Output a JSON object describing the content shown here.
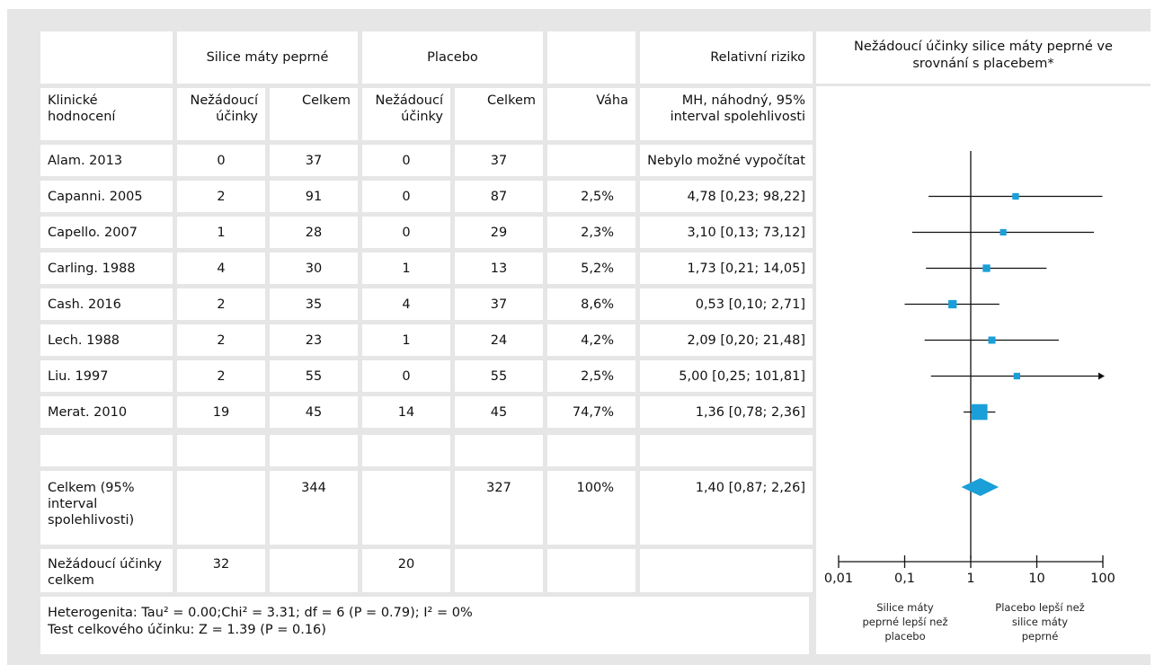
{
  "header": {
    "group_sm": "Silice máty peprné",
    "group_pl": "Placebo",
    "rr_title": "Relativní riziko",
    "plot_title": "Nežádoucí účinky silice máty peprné ve srovnání s placebem*"
  },
  "subheader": {
    "trial": "Klinické hodnocení",
    "sm_events": "Nežádoucí účinky",
    "sm_total": "Celkem",
    "pl_events": "Nežádoucí účinky",
    "pl_total": "Celkem",
    "weight": "Váha",
    "rr": "MH, náhodný, 95% interval spolehlivosti"
  },
  "rows": [
    {
      "trial": "Alam. 2013",
      "sm_events": "0",
      "sm_total": "37",
      "pl_events": "0",
      "pl_total": "37",
      "weight": "",
      "rr": "Nebylo možné vypočítat"
    },
    {
      "trial": "Capanni. 2005",
      "sm_events": "2",
      "sm_total": "91",
      "pl_events": "0",
      "pl_total": "87",
      "weight": "2,5%",
      "rr": "4,78 [0,23; 98,22]"
    },
    {
      "trial": "Capello. 2007",
      "sm_events": "1",
      "sm_total": "28",
      "pl_events": "0",
      "pl_total": "29",
      "weight": "2,3%",
      "rr": "3,10 [0,13; 73,12]"
    },
    {
      "trial": "Carling. 1988",
      "sm_events": "4",
      "sm_total": "30",
      "pl_events": "1",
      "pl_total": "13",
      "weight": "5,2%",
      "rr": "1,73 [0,21; 14,05]"
    },
    {
      "trial": "Cash. 2016",
      "sm_events": "2",
      "sm_total": "35",
      "pl_events": "4",
      "pl_total": "37",
      "weight": "8,6%",
      "rr": "0,53 [0,10; 2,71]"
    },
    {
      "trial": "Lech. 1988",
      "sm_events": "2",
      "sm_total": "23",
      "pl_events": "1",
      "pl_total": "24",
      "weight": "4,2%",
      "rr": "2,09 [0,20; 21,48]"
    },
    {
      "trial": "Liu. 1997",
      "sm_events": "2",
      "sm_total": "55",
      "pl_events": "0",
      "pl_total": "55",
      "weight": "2,5%",
      "rr": "5,00 [0,25; 101,81]"
    },
    {
      "trial": "Merat. 2010",
      "sm_events": "19",
      "sm_total": "45",
      "pl_events": "14",
      "pl_total": "45",
      "weight": "74,7%",
      "rr": "1,36 [0,78; 2,36]"
    }
  ],
  "total_row": {
    "trial": "Celkem (95% interval spolehlivosti)",
    "sm_total": "344",
    "pl_total": "327",
    "weight": "100%",
    "rr": "1,40 [0,87; 2,26]"
  },
  "events_row": {
    "trial": "Nežádoucí účinky celkem",
    "sm_events": "32",
    "pl_events": "20"
  },
  "footer": {
    "heterogeneity": "Heterogenita: Tau² = 0.00;Chi² = 3.31; df = 6 (P = 0.79); I² = 0%",
    "overall_test": "Test celkového účinku: Z = 1.39 (P = 0.16)"
  },
  "chart_data": {
    "type": "forest",
    "x_scale": "log",
    "xlim": [
      0.01,
      100
    ],
    "x_ticks": [
      "0,01",
      "0,1",
      "1",
      "10",
      "100"
    ],
    "reference_line": 1,
    "left_label": "Silice máty peprné lepší než placebo",
    "right_label": "Placebo lepší než silice máty peprné",
    "accent_color": "#1a9fd8",
    "studies": [
      {
        "name": "Alam. 2013",
        "estimate": null,
        "lower": null,
        "upper": null,
        "weight": null
      },
      {
        "name": "Capanni. 2005",
        "estimate": 4.78,
        "lower": 0.23,
        "upper": 98.22,
        "weight": 2.5
      },
      {
        "name": "Capello. 2007",
        "estimate": 3.1,
        "lower": 0.13,
        "upper": 73.12,
        "weight": 2.3
      },
      {
        "name": "Carling. 1988",
        "estimate": 1.73,
        "lower": 0.21,
        "upper": 14.05,
        "weight": 5.2
      },
      {
        "name": "Cash. 2016",
        "estimate": 0.53,
        "lower": 0.1,
        "upper": 2.71,
        "weight": 8.6
      },
      {
        "name": "Lech. 1988",
        "estimate": 2.09,
        "lower": 0.2,
        "upper": 21.48,
        "weight": 4.2
      },
      {
        "name": "Liu. 1997",
        "estimate": 5.0,
        "lower": 0.25,
        "upper": 101.81,
        "weight": 2.5,
        "arrow_right": true
      },
      {
        "name": "Merat. 2010",
        "estimate": 1.36,
        "lower": 0.78,
        "upper": 2.36,
        "weight": 74.7
      }
    ],
    "pooled": {
      "estimate": 1.4,
      "lower": 0.87,
      "upper": 2.26
    }
  }
}
